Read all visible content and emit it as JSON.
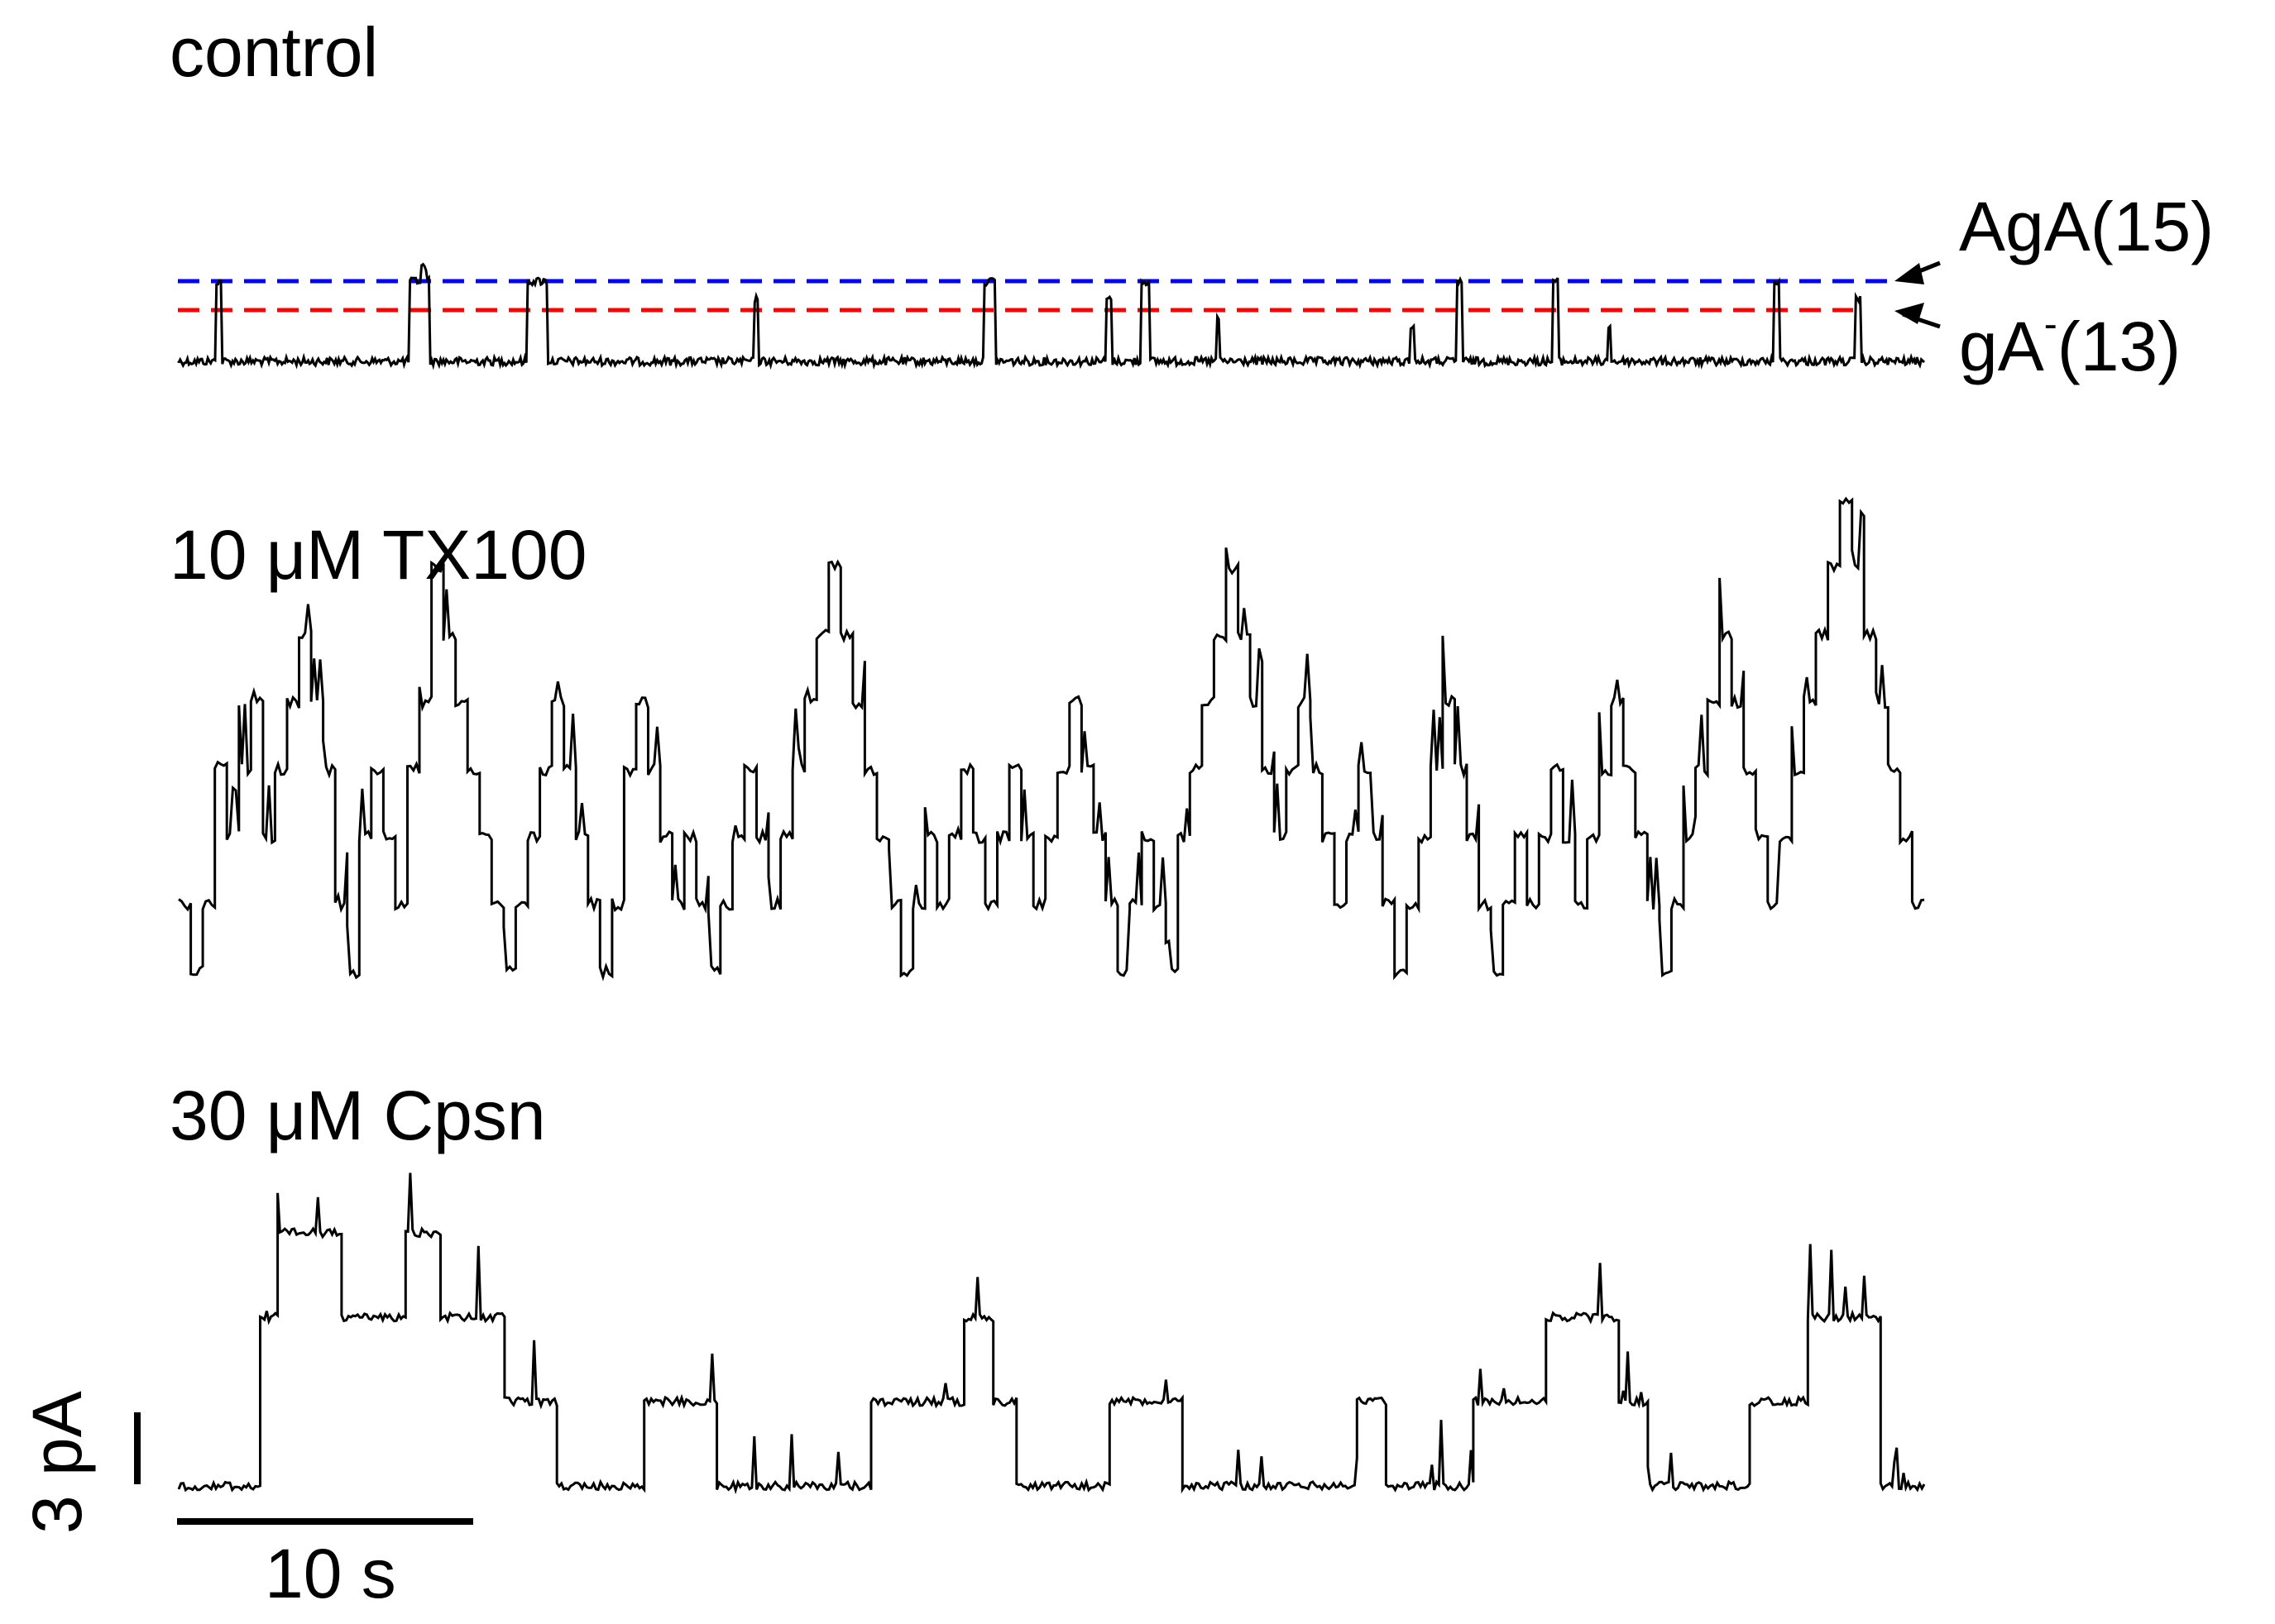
{
  "chart_data": {
    "type": "line",
    "description_units": {
      "x": "s",
      "y": "pA"
    },
    "panels": [
      {
        "label": "control",
        "baseline_pA": 0,
        "levels_pA": [
          0,
          1.7,
          2.2
        ],
        "duration_s": 60,
        "events": [
          {
            "t0": 1.3,
            "t1": 1.5,
            "level": 2.2
          },
          {
            "t0": 7.9,
            "t1": 8.6,
            "level": 2.2
          },
          {
            "t0": 8.3,
            "t1": 8.5,
            "level": 2.6
          },
          {
            "t0": 12.0,
            "t1": 12.7,
            "level": 2.2
          },
          {
            "t0": 19.8,
            "t1": 19.95,
            "level": 1.7
          },
          {
            "t0": 27.7,
            "t1": 28.1,
            "level": 2.2
          },
          {
            "t0": 31.9,
            "t1": 32.1,
            "level": 1.7
          },
          {
            "t0": 33.1,
            "t1": 33.4,
            "level": 2.2
          },
          {
            "t0": 35.7,
            "t1": 35.8,
            "level": 1.2
          },
          {
            "t0": 42.3,
            "t1": 42.45,
            "level": 1.0
          },
          {
            "t0": 43.9,
            "t1": 44.1,
            "level": 2.2
          },
          {
            "t0": 47.2,
            "t1": 47.4,
            "level": 2.2
          },
          {
            "t0": 49.1,
            "t1": 49.2,
            "level": 1.0
          },
          {
            "t0": 54.8,
            "t1": 55.0,
            "level": 2.2
          },
          {
            "t0": 57.6,
            "t1": 57.8,
            "level": 1.7
          }
        ],
        "reference_lines": [
          {
            "name": "AgA(15)",
            "level_pA": 2.2,
            "color": "#0000ff"
          },
          {
            "name": "gA⁻(13)",
            "level_pA": 1.7,
            "color": "#ff0000"
          }
        ]
      },
      {
        "label": "10 μM TX100",
        "duration_s": 60,
        "levels_pA": [
          0,
          1.7,
          3.4,
          5.1,
          6.8,
          8.5,
          10.2,
          11.9
        ],
        "level_sequence": [
          1,
          0,
          1,
          3,
          2,
          3,
          4,
          2,
          3,
          4,
          5,
          4,
          3,
          1,
          0,
          2,
          3,
          2,
          1,
          3,
          4,
          6,
          5,
          4,
          3,
          2,
          1,
          0,
          1,
          2,
          3,
          4,
          3,
          2,
          1,
          0,
          1,
          3,
          4,
          3,
          2,
          1,
          2,
          1,
          0,
          1,
          2,
          3,
          2,
          1,
          2,
          3,
          4,
          5,
          6,
          5,
          4,
          3,
          2,
          1,
          0,
          1,
          2,
          1,
          2,
          3,
          2,
          1,
          2,
          3,
          2,
          1,
          2,
          3,
          4,
          3,
          2,
          1,
          0,
          1,
          2,
          1,
          0,
          2,
          3,
          4,
          5,
          6,
          5,
          4,
          3,
          2,
          3,
          4,
          3,
          2,
          1,
          2,
          3,
          2,
          1,
          0,
          1,
          2,
          3,
          4,
          3,
          2,
          1,
          0,
          1,
          2,
          1,
          2,
          3,
          2,
          1,
          2,
          3,
          4,
          3,
          2,
          1,
          0,
          1,
          2,
          3,
          4,
          5,
          4,
          3,
          2,
          1,
          2,
          3,
          4,
          5,
          6,
          7,
          6,
          5,
          4,
          3,
          2,
          1
        ]
      },
      {
        "label": "30 μM Cpsn",
        "duration_s": 60,
        "levels_pA": [
          0,
          1.7,
          3.4,
          5.1
        ],
        "segments": [
          {
            "t0": 0.0,
            "t1": 2.8,
            "level": 0
          },
          {
            "t0": 2.8,
            "t1": 3.4,
            "level": 2
          },
          {
            "t0": 3.4,
            "t1": 5.6,
            "level": 3
          },
          {
            "t0": 5.6,
            "t1": 7.8,
            "level": 2
          },
          {
            "t0": 7.8,
            "t1": 9.0,
            "level": 3
          },
          {
            "t0": 9.0,
            "t1": 11.2,
            "level": 2
          },
          {
            "t0": 11.2,
            "t1": 13.0,
            "level": 1
          },
          {
            "t0": 13.0,
            "t1": 16.0,
            "level": 0
          },
          {
            "t0": 16.0,
            "t1": 18.5,
            "level": 1
          },
          {
            "t0": 18.5,
            "t1": 23.8,
            "level": 0
          },
          {
            "t0": 23.8,
            "t1": 27.0,
            "level": 1
          },
          {
            "t0": 27.0,
            "t1": 28.0,
            "level": 2
          },
          {
            "t0": 28.0,
            "t1": 28.8,
            "level": 1
          },
          {
            "t0": 28.8,
            "t1": 32.0,
            "level": 0
          },
          {
            "t0": 32.0,
            "t1": 34.5,
            "level": 1
          },
          {
            "t0": 34.5,
            "t1": 40.5,
            "level": 0
          },
          {
            "t0": 40.5,
            "t1": 41.5,
            "level": 1
          },
          {
            "t0": 41.5,
            "t1": 44.5,
            "level": 0
          },
          {
            "t0": 44.5,
            "t1": 47.0,
            "level": 1
          },
          {
            "t0": 47.0,
            "t1": 49.5,
            "level": 2
          },
          {
            "t0": 49.5,
            "t1": 50.5,
            "level": 1
          },
          {
            "t0": 50.5,
            "t1": 54.0,
            "level": 0
          },
          {
            "t0": 54.0,
            "t1": 56.0,
            "level": 1
          },
          {
            "t0": 56.0,
            "t1": 58.5,
            "level": 2
          },
          {
            "t0": 58.5,
            "t1": 60.0,
            "level": 0
          }
        ]
      }
    ],
    "scale_bars": {
      "time": "10 s",
      "current": "3 pA"
    }
  },
  "labels": {
    "panel_control": "control",
    "panel_tx100": "10 μM TX100",
    "panel_cpsn": "30 μM Cpsn",
    "ref_aga": "AgA(15)",
    "ref_ga_base": "gA",
    "ref_ga_sup": "-",
    "ref_ga_tail": "(13)",
    "scale_time": "10 s",
    "scale_current": "3 pA"
  }
}
